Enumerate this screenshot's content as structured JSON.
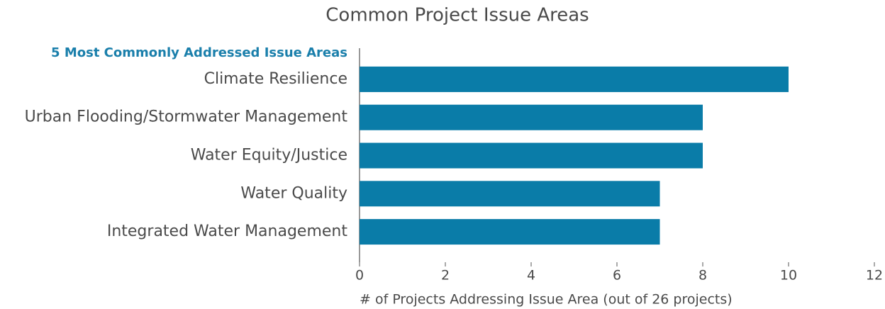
{
  "chart_data": {
    "type": "barh",
    "title": "Common Project Issue Areas",
    "subtitle": "5 Most Commonly Addressed Issue Areas",
    "x_label": "# of Projects Addressing Issue Area (out of 26 projects)",
    "categories": [
      "Climate Resilience",
      "Urban Flooding/Stormwater Management",
      "Water Equity/Justice",
      "Water Quality",
      "Integrated Water Management"
    ],
    "values": [
      10,
      8,
      8,
      7,
      7
    ],
    "color": "#0a7ca8",
    "xlim": [
      0,
      12
    ],
    "xticks": [
      0,
      2,
      4,
      6,
      8,
      10,
      12
    ],
    "grid": false
  }
}
